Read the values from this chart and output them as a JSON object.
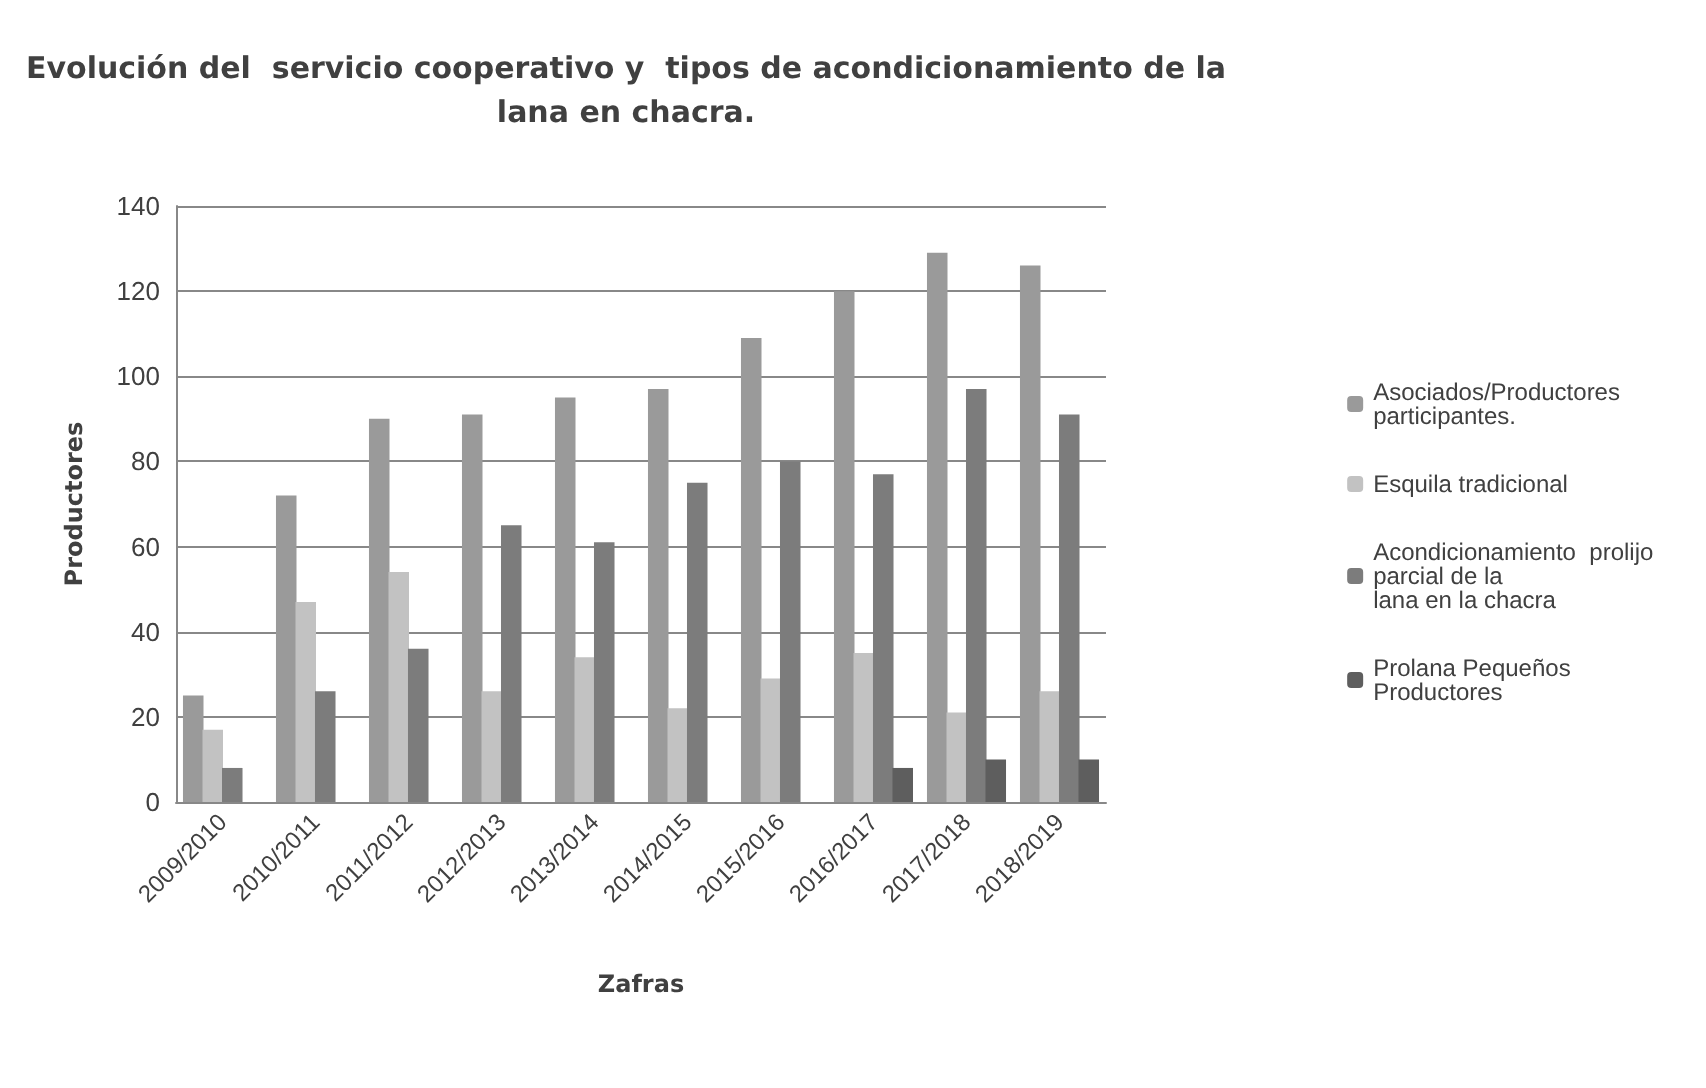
{
  "chart_data": {
    "type": "bar",
    "title": "Evolución del  servicio cooperativo y  tipos de acondicionamiento de la\nlana en chacra.",
    "xlabel": "Zafras",
    "ylabel": "Productores",
    "categories": [
      "2009/2010",
      "2010/2011",
      "2011/2012",
      "2012/2013",
      "2013/2014",
      "2014/2015",
      "2015/2016",
      "2016/2017",
      "2017/2018",
      "2018/2019"
    ],
    "series": [
      {
        "name": "Asociados/Productores participantes.",
        "color": "#9a9a9a",
        "values": [
          25,
          72,
          90,
          91,
          95,
          97,
          109,
          120,
          129,
          126
        ]
      },
      {
        "name": "Esquila tradicional",
        "color": "#c2c2c2",
        "values": [
          17,
          47,
          54,
          26,
          34,
          22,
          29,
          35,
          21,
          26
        ]
      },
      {
        "name": "Acondicionamiento  prolijo parcial de la\nlana en la chacra",
        "color": "#7c7c7c",
        "values": [
          8,
          26,
          36,
          65,
          61,
          75,
          80,
          77,
          97,
          91
        ]
      },
      {
        "name": "Prolana Pequeños Productores",
        "color": "#5e5e5e",
        "values": [
          null,
          null,
          null,
          null,
          null,
          null,
          null,
          8,
          10,
          10
        ]
      }
    ],
    "ylim": [
      0,
      140
    ],
    "yticks": [
      0,
      20,
      40,
      60,
      80,
      100,
      120,
      140
    ],
    "grid": "y",
    "legend": "right"
  }
}
